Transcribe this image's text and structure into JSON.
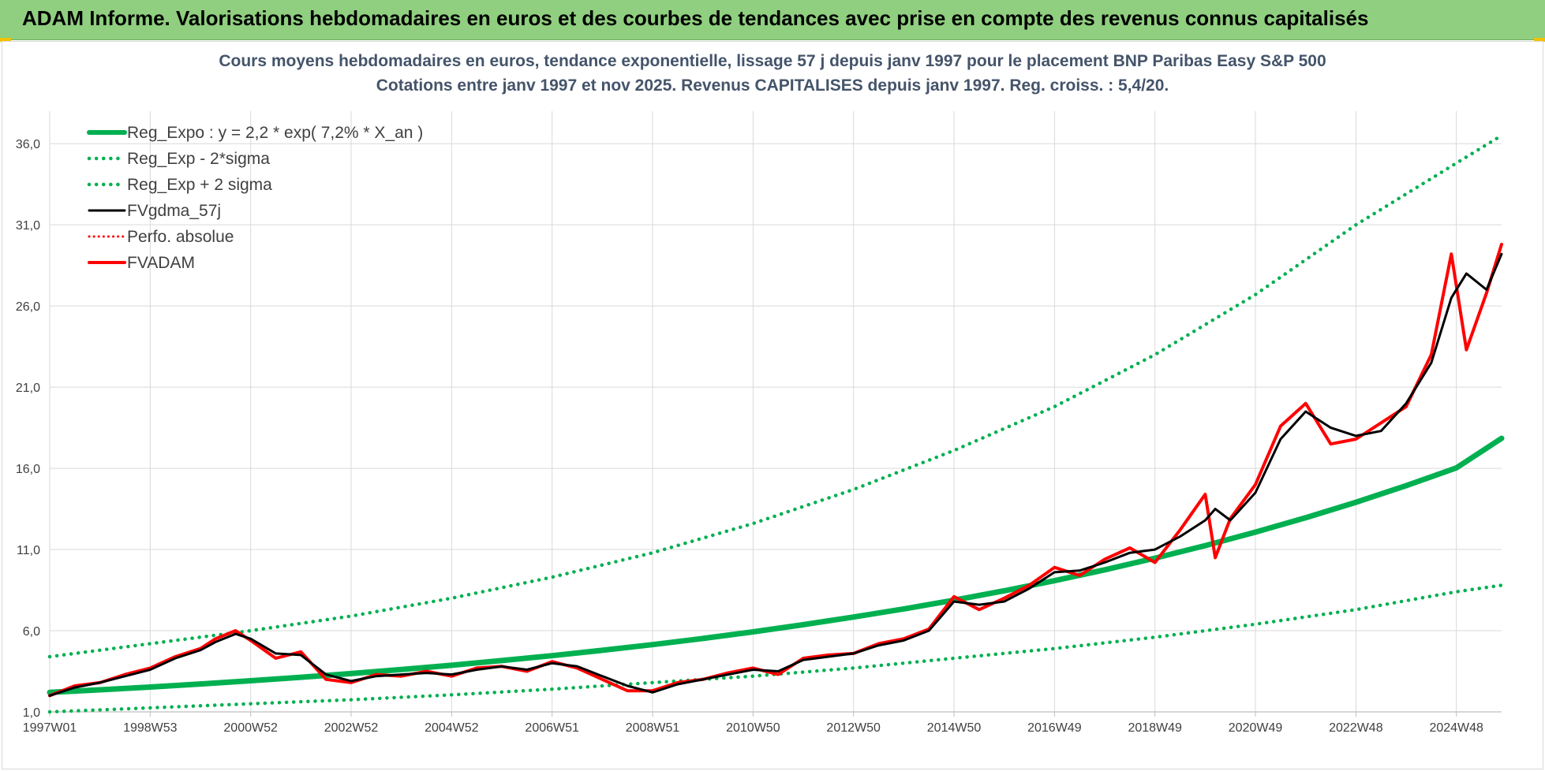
{
  "header": {
    "title": "ADAM Informe. Valorisations hebdomadaires en euros et des courbes de tendances avec prise en compte des revenus connus capitalisés"
  },
  "chart_data": {
    "type": "line",
    "title_lines": [
      "Cours moyens hebdomadaires en euros, tendance exponentielle, lissage 57 j depuis janv 1997 pour le placement BNP Paribas Easy S&P 500",
      "Cotations entre janv 1997 et nov 2025. Revenus CAPITALISES depuis janv 1997. Reg. croiss. : 5,4/20."
    ],
    "xlabel": "",
    "ylabel": "",
    "ylim": [
      1.0,
      38.0
    ],
    "xlim": [
      1997.0,
      2025.9
    ],
    "y_ticks": [
      "1,0",
      "6,0",
      "11,0",
      "16,0",
      "21,0",
      "26,0",
      "31,0",
      "36,0"
    ],
    "y_tick_values": [
      1,
      6,
      11,
      16,
      21,
      26,
      31,
      36
    ],
    "x_ticks": [
      "1997W01",
      "1998W53",
      "2000W52",
      "2002W52",
      "2004W52",
      "2006W51",
      "2008W51",
      "2010W50",
      "2012W50",
      "2014W50",
      "2016W49",
      "2018W49",
      "2020W49",
      "2022W48",
      "2024W48"
    ],
    "x_tick_values": [
      1997,
      1999,
      2001,
      2003,
      2005,
      2007,
      2009,
      2011,
      2013,
      2015,
      2017,
      2019,
      2021,
      2023,
      2025
    ],
    "grid": true,
    "legend_position": "top-left",
    "colors": {
      "trend": "#00b050",
      "fvgdma": "#000000",
      "fvadam": "#ff0000",
      "perfo": "#ff0000"
    },
    "series": [
      {
        "name": "Reg_Expo : y = 2,2 * exp( 7,2% *  X_an )",
        "style": "solid",
        "x": [
          1997,
          1998,
          1999,
          2000,
          2001,
          2002,
          2003,
          2004,
          2005,
          2006,
          2007,
          2008,
          2009,
          2010,
          2011,
          2012,
          2013,
          2014,
          2015,
          2016,
          2017,
          2018,
          2019,
          2020,
          2021,
          2022,
          2023,
          2024,
          2025,
          2025.9
        ],
        "values": [
          2.2,
          2.36,
          2.53,
          2.72,
          2.92,
          3.13,
          3.36,
          3.61,
          3.87,
          4.16,
          4.46,
          4.79,
          5.14,
          5.52,
          5.93,
          6.37,
          6.84,
          7.34,
          7.88,
          8.46,
          9.08,
          9.75,
          10.47,
          11.24,
          12.07,
          12.96,
          13.91,
          14.93,
          16.03,
          17.85
        ]
      },
      {
        "name": "Reg_Exp - 2*sigma",
        "style": "dotted",
        "x": [
          1997,
          1999,
          2001,
          2003,
          2005,
          2007,
          2009,
          2011,
          2013,
          2015,
          2017,
          2019,
          2021,
          2023,
          2025,
          2025.9
        ],
        "values": [
          1.0,
          1.25,
          1.5,
          1.75,
          2.05,
          2.4,
          2.8,
          3.2,
          3.7,
          4.3,
          4.9,
          5.6,
          6.4,
          7.3,
          8.4,
          8.8
        ]
      },
      {
        "name": "Reg_Exp + 2 sigma",
        "style": "dotted",
        "x": [
          1997,
          1999,
          2001,
          2003,
          2005,
          2007,
          2009,
          2011,
          2013,
          2015,
          2017,
          2019,
          2021,
          2023,
          2025,
          2025.9
        ],
        "values": [
          4.4,
          5.2,
          6.0,
          6.9,
          8.0,
          9.3,
          10.8,
          12.6,
          14.7,
          17.1,
          19.8,
          23.0,
          26.7,
          31.0,
          34.8,
          36.5
        ]
      },
      {
        "name": "FVgdma_57j",
        "style": "solid",
        "x": [
          1997.0,
          1997.5,
          1998.0,
          1998.5,
          1999.0,
          1999.5,
          2000.0,
          2000.3,
          2000.7,
          2001.0,
          2001.5,
          2002.0,
          2002.5,
          2003.0,
          2003.5,
          2004.0,
          2004.5,
          2005.0,
          2005.5,
          2006.0,
          2006.5,
          2007.0,
          2007.5,
          2008.0,
          2008.5,
          2009.0,
          2009.5,
          2010.0,
          2010.5,
          2011.0,
          2011.5,
          2012.0,
          2012.5,
          2013.0,
          2013.5,
          2014.0,
          2014.5,
          2015.0,
          2015.5,
          2016.0,
          2016.5,
          2017.0,
          2017.5,
          2018.0,
          2018.5,
          2019.0,
          2019.5,
          2020.0,
          2020.2,
          2020.5,
          2021.0,
          2021.5,
          2022.0,
          2022.5,
          2023.0,
          2023.5,
          2024.0,
          2024.5,
          2024.9,
          2025.2,
          2025.6,
          2025.9
        ],
        "values": [
          2.0,
          2.5,
          2.8,
          3.2,
          3.6,
          4.3,
          4.8,
          5.3,
          5.8,
          5.5,
          4.6,
          4.5,
          3.3,
          2.9,
          3.2,
          3.3,
          3.4,
          3.3,
          3.6,
          3.8,
          3.6,
          4.0,
          3.8,
          3.2,
          2.6,
          2.2,
          2.7,
          3.0,
          3.3,
          3.6,
          3.5,
          4.2,
          4.4,
          4.6,
          5.1,
          5.4,
          6.0,
          7.8,
          7.6,
          7.8,
          8.6,
          9.6,
          9.7,
          10.2,
          10.8,
          11.0,
          11.8,
          12.8,
          13.5,
          12.8,
          14.5,
          17.8,
          19.5,
          18.5,
          18.0,
          18.3,
          20.0,
          22.5,
          26.5,
          28.0,
          27.0,
          29.2
        ]
      },
      {
        "name": "Perfo. absolue",
        "style": "dotted",
        "x": [],
        "values": []
      },
      {
        "name": "FVADAM",
        "style": "solid",
        "x": [
          1997.0,
          1997.5,
          1998.0,
          1998.5,
          1999.0,
          1999.5,
          2000.0,
          2000.3,
          2000.7,
          2001.0,
          2001.5,
          2002.0,
          2002.5,
          2003.0,
          2003.5,
          2004.0,
          2004.5,
          2005.0,
          2005.5,
          2006.0,
          2006.5,
          2007.0,
          2007.5,
          2008.0,
          2008.5,
          2009.0,
          2009.5,
          2010.0,
          2010.5,
          2011.0,
          2011.5,
          2012.0,
          2012.5,
          2013.0,
          2013.5,
          2014.0,
          2014.5,
          2015.0,
          2015.5,
          2016.0,
          2016.5,
          2017.0,
          2017.5,
          2018.0,
          2018.5,
          2019.0,
          2019.5,
          2020.0,
          2020.2,
          2020.5,
          2021.0,
          2021.5,
          2022.0,
          2022.5,
          2023.0,
          2023.5,
          2024.0,
          2024.5,
          2024.9,
          2025.2,
          2025.6,
          2025.9
        ],
        "values": [
          2.0,
          2.6,
          2.8,
          3.3,
          3.7,
          4.4,
          4.9,
          5.5,
          6.0,
          5.4,
          4.3,
          4.7,
          3.0,
          2.8,
          3.3,
          3.2,
          3.5,
          3.2,
          3.7,
          3.8,
          3.5,
          4.1,
          3.7,
          3.0,
          2.3,
          2.3,
          2.8,
          3.0,
          3.4,
          3.7,
          3.3,
          4.3,
          4.5,
          4.6,
          5.2,
          5.5,
          6.1,
          8.1,
          7.3,
          8.0,
          8.8,
          9.9,
          9.4,
          10.4,
          11.1,
          10.2,
          12.2,
          14.4,
          10.5,
          12.9,
          15.0,
          18.6,
          20.0,
          17.5,
          17.8,
          18.8,
          19.8,
          23.0,
          29.2,
          23.3,
          26.8,
          29.8
        ]
      }
    ]
  }
}
